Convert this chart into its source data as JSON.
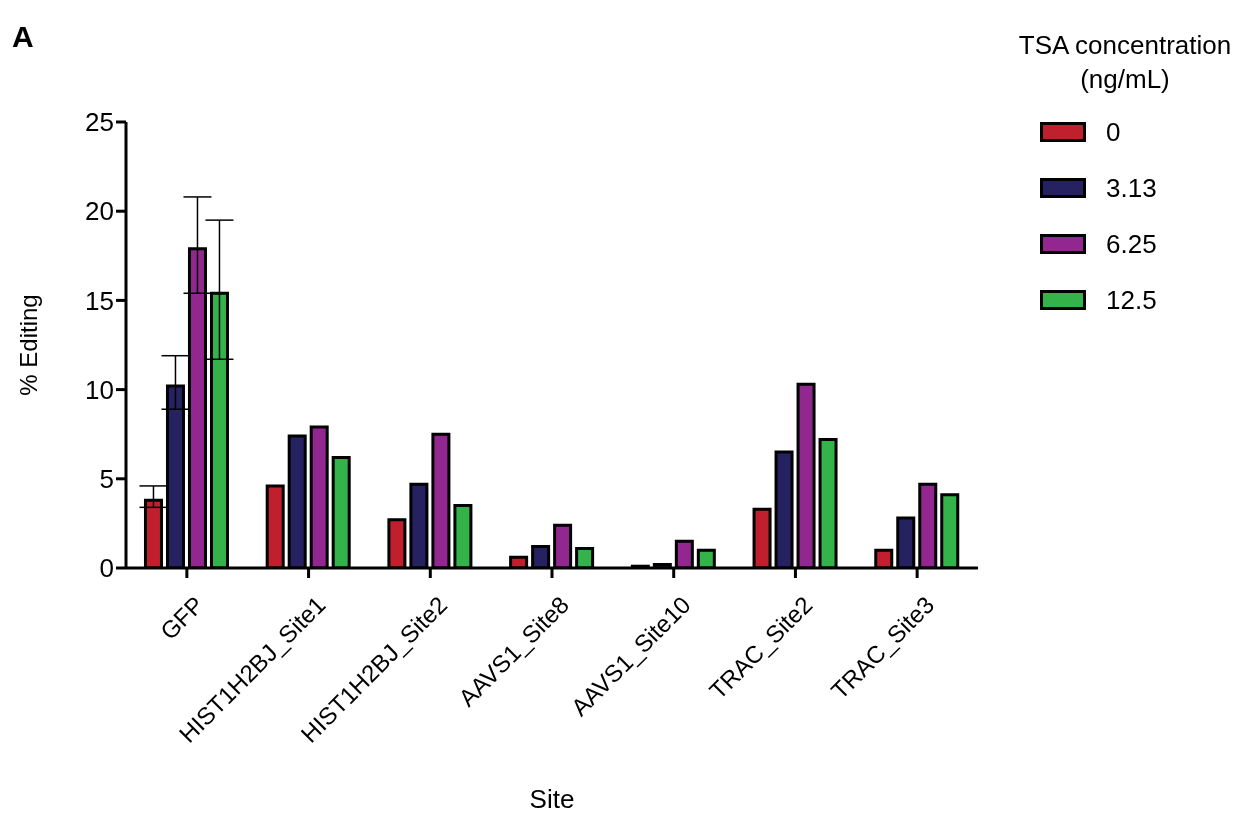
{
  "chart_data": {
    "type": "bar",
    "xlabel": "Site",
    "ylabel": "% Editing",
    "legend_title": "TSA concentration (ng/mL)",
    "annotations": [
      "A"
    ],
    "categories": [
      "GFP",
      "HIST1H2BJ_Site1",
      "HIST1H2BJ_Site2",
      "AAVS1_Site8",
      "AAVS1_Site10",
      "TRAC_Site2",
      "TRAC_Site3"
    ],
    "series": [
      {
        "name": "0",
        "color": "#c0202e",
        "values": [
          3.8,
          4.6,
          2.7,
          0.6,
          0.1,
          3.3,
          1.0
        ],
        "errors": [
          [
            3.4,
            4.6
          ],
          null,
          null,
          null,
          null,
          null,
          null
        ]
      },
      {
        "name": "3.13",
        "color": "#262262",
        "values": [
          10.2,
          7.4,
          4.7,
          1.2,
          0.2,
          6.5,
          2.8
        ],
        "errors": [
          [
            8.9,
            11.9
          ],
          null,
          null,
          null,
          null,
          null,
          null
        ]
      },
      {
        "name": "6.25",
        "color": "#92278f",
        "values": [
          17.9,
          7.9,
          7.5,
          2.4,
          1.5,
          10.3,
          4.7
        ],
        "errors": [
          [
            15.4,
            20.8
          ],
          null,
          null,
          null,
          null,
          null,
          null
        ]
      },
      {
        "name": "12.5",
        "color": "#33b34a",
        "values": [
          15.4,
          6.2,
          3.5,
          1.1,
          1.0,
          7.2,
          4.1
        ],
        "errors": [
          [
            11.7,
            19.5
          ],
          null,
          null,
          null,
          null,
          null,
          null
        ]
      }
    ],
    "ylim": [
      0,
      25
    ],
    "yticks": [
      0,
      5,
      10,
      15,
      20,
      25
    ],
    "grid": false,
    "legend": "top right"
  }
}
